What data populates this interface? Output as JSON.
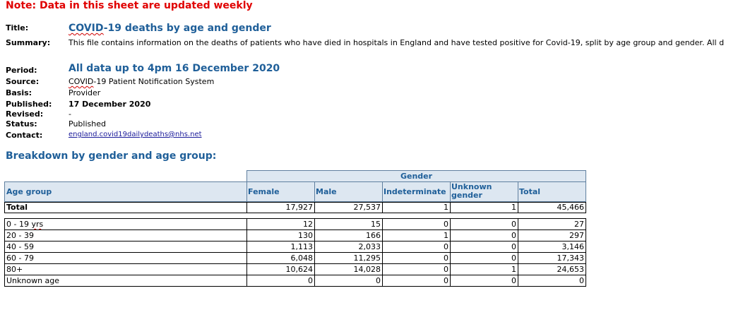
{
  "note": "Note: Data in this sheet are updated weekly",
  "meta": {
    "title_label": "Title:",
    "title_prefix": "COVID",
    "title_rest": "-19 deaths by age and gender",
    "summary_label": "Summary:",
    "summary_a": "This file contains information on the deaths of patients who have died in hospitals in England and have tested positive for ",
    "summary_b": "Covid",
    "summary_c": "-19, split by age group and gender. All d",
    "period_label": "Period:",
    "period_value": "All data up to 4pm 16 December 2020",
    "source_label": "Source:",
    "source_prefix": "COVID",
    "source_rest": "-19 Patient Notification System",
    "basis_label": "Basis:",
    "basis_value": "Provider",
    "published_label": "Published:",
    "published_value": "17 December 2020",
    "revised_label": "Revised:",
    "revised_value": "-",
    "status_label": "Status:",
    "status_value": "Published",
    "contact_label": "Contact:",
    "contact_value": "england.covid19dailydeaths@nhs.net"
  },
  "section_title": "Breakdown by gender and age group:",
  "table": {
    "group_header": "Gender",
    "col_age": "Age group",
    "col_female": "Female",
    "col_male": "Male",
    "col_indeterminate": "Indeterminate",
    "col_unknown_1": "Unknown",
    "col_unknown_2": "gender",
    "col_total": "Total",
    "total_row": {
      "age": "Total",
      "female": "17,927",
      "male": "27,537",
      "indet": "1",
      "unknown": "1",
      "total": "45,466"
    },
    "rows": [
      {
        "age_a": "0 - 19 ",
        "age_b": "yrs",
        "female": "12",
        "male": "15",
        "indet": "0",
        "unknown": "0",
        "total": "27"
      },
      {
        "age_a": "20 - 39",
        "age_b": "",
        "female": "130",
        "male": "166",
        "indet": "1",
        "unknown": "0",
        "total": "297"
      },
      {
        "age_a": "40 - 59",
        "age_b": "",
        "female": "1,113",
        "male": "2,033",
        "indet": "0",
        "unknown": "0",
        "total": "3,146"
      },
      {
        "age_a": "60 - 79",
        "age_b": "",
        "female": "6,048",
        "male": "11,295",
        "indet": "0",
        "unknown": "0",
        "total": "17,343"
      },
      {
        "age_a": "80+",
        "age_b": "",
        "female": "10,624",
        "male": "14,028",
        "indet": "0",
        "unknown": "1",
        "total": "24,653"
      },
      {
        "age_a": "Unknown age",
        "age_b": "",
        "female": "0",
        "male": "0",
        "indet": "0",
        "unknown": "0",
        "total": "0"
      }
    ]
  }
}
